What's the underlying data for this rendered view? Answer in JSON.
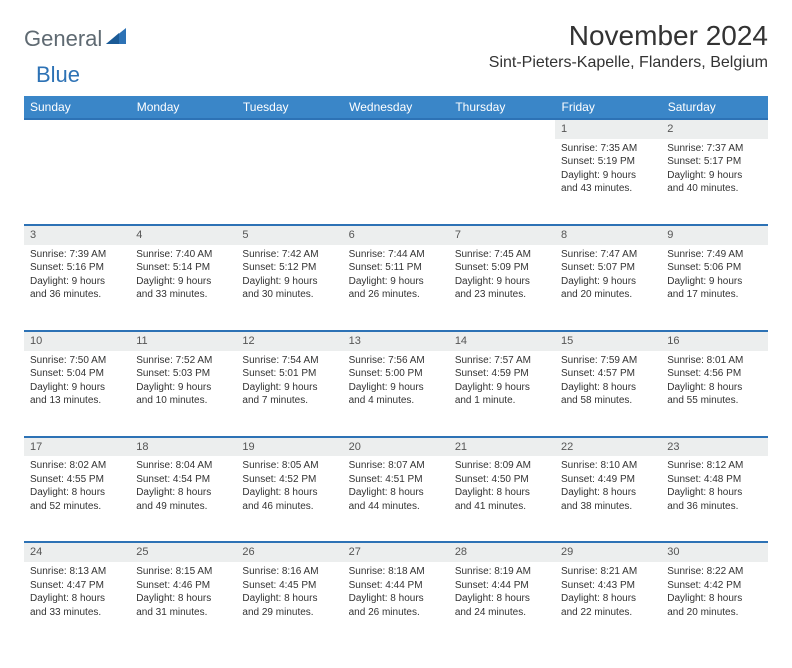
{
  "logo": {
    "text1": "General",
    "text2": "Blue"
  },
  "title": "November 2024",
  "location": "Sint-Pieters-Kapelle, Flanders, Belgium",
  "colors": {
    "header_bg": "#3a86c8",
    "accent_line": "#2d72b5",
    "daynum_bg": "#eceeee",
    "text": "#333333",
    "logo_gray": "#5f6a72",
    "logo_blue": "#2d72b5"
  },
  "dayHeaders": [
    "Sunday",
    "Monday",
    "Tuesday",
    "Wednesday",
    "Thursday",
    "Friday",
    "Saturday"
  ],
  "weeks": [
    [
      null,
      null,
      null,
      null,
      null,
      {
        "n": "1",
        "sr": "Sunrise: 7:35 AM",
        "ss": "Sunset: 5:19 PM",
        "dl1": "Daylight: 9 hours",
        "dl2": "and 43 minutes."
      },
      {
        "n": "2",
        "sr": "Sunrise: 7:37 AM",
        "ss": "Sunset: 5:17 PM",
        "dl1": "Daylight: 9 hours",
        "dl2": "and 40 minutes."
      }
    ],
    [
      {
        "n": "3",
        "sr": "Sunrise: 7:39 AM",
        "ss": "Sunset: 5:16 PM",
        "dl1": "Daylight: 9 hours",
        "dl2": "and 36 minutes."
      },
      {
        "n": "4",
        "sr": "Sunrise: 7:40 AM",
        "ss": "Sunset: 5:14 PM",
        "dl1": "Daylight: 9 hours",
        "dl2": "and 33 minutes."
      },
      {
        "n": "5",
        "sr": "Sunrise: 7:42 AM",
        "ss": "Sunset: 5:12 PM",
        "dl1": "Daylight: 9 hours",
        "dl2": "and 30 minutes."
      },
      {
        "n": "6",
        "sr": "Sunrise: 7:44 AM",
        "ss": "Sunset: 5:11 PM",
        "dl1": "Daylight: 9 hours",
        "dl2": "and 26 minutes."
      },
      {
        "n": "7",
        "sr": "Sunrise: 7:45 AM",
        "ss": "Sunset: 5:09 PM",
        "dl1": "Daylight: 9 hours",
        "dl2": "and 23 minutes."
      },
      {
        "n": "8",
        "sr": "Sunrise: 7:47 AM",
        "ss": "Sunset: 5:07 PM",
        "dl1": "Daylight: 9 hours",
        "dl2": "and 20 minutes."
      },
      {
        "n": "9",
        "sr": "Sunrise: 7:49 AM",
        "ss": "Sunset: 5:06 PM",
        "dl1": "Daylight: 9 hours",
        "dl2": "and 17 minutes."
      }
    ],
    [
      {
        "n": "10",
        "sr": "Sunrise: 7:50 AM",
        "ss": "Sunset: 5:04 PM",
        "dl1": "Daylight: 9 hours",
        "dl2": "and 13 minutes."
      },
      {
        "n": "11",
        "sr": "Sunrise: 7:52 AM",
        "ss": "Sunset: 5:03 PM",
        "dl1": "Daylight: 9 hours",
        "dl2": "and 10 minutes."
      },
      {
        "n": "12",
        "sr": "Sunrise: 7:54 AM",
        "ss": "Sunset: 5:01 PM",
        "dl1": "Daylight: 9 hours",
        "dl2": "and 7 minutes."
      },
      {
        "n": "13",
        "sr": "Sunrise: 7:56 AM",
        "ss": "Sunset: 5:00 PM",
        "dl1": "Daylight: 9 hours",
        "dl2": "and 4 minutes."
      },
      {
        "n": "14",
        "sr": "Sunrise: 7:57 AM",
        "ss": "Sunset: 4:59 PM",
        "dl1": "Daylight: 9 hours",
        "dl2": "and 1 minute."
      },
      {
        "n": "15",
        "sr": "Sunrise: 7:59 AM",
        "ss": "Sunset: 4:57 PM",
        "dl1": "Daylight: 8 hours",
        "dl2": "and 58 minutes."
      },
      {
        "n": "16",
        "sr": "Sunrise: 8:01 AM",
        "ss": "Sunset: 4:56 PM",
        "dl1": "Daylight: 8 hours",
        "dl2": "and 55 minutes."
      }
    ],
    [
      {
        "n": "17",
        "sr": "Sunrise: 8:02 AM",
        "ss": "Sunset: 4:55 PM",
        "dl1": "Daylight: 8 hours",
        "dl2": "and 52 minutes."
      },
      {
        "n": "18",
        "sr": "Sunrise: 8:04 AM",
        "ss": "Sunset: 4:54 PM",
        "dl1": "Daylight: 8 hours",
        "dl2": "and 49 minutes."
      },
      {
        "n": "19",
        "sr": "Sunrise: 8:05 AM",
        "ss": "Sunset: 4:52 PM",
        "dl1": "Daylight: 8 hours",
        "dl2": "and 46 minutes."
      },
      {
        "n": "20",
        "sr": "Sunrise: 8:07 AM",
        "ss": "Sunset: 4:51 PM",
        "dl1": "Daylight: 8 hours",
        "dl2": "and 44 minutes."
      },
      {
        "n": "21",
        "sr": "Sunrise: 8:09 AM",
        "ss": "Sunset: 4:50 PM",
        "dl1": "Daylight: 8 hours",
        "dl2": "and 41 minutes."
      },
      {
        "n": "22",
        "sr": "Sunrise: 8:10 AM",
        "ss": "Sunset: 4:49 PM",
        "dl1": "Daylight: 8 hours",
        "dl2": "and 38 minutes."
      },
      {
        "n": "23",
        "sr": "Sunrise: 8:12 AM",
        "ss": "Sunset: 4:48 PM",
        "dl1": "Daylight: 8 hours",
        "dl2": "and 36 minutes."
      }
    ],
    [
      {
        "n": "24",
        "sr": "Sunrise: 8:13 AM",
        "ss": "Sunset: 4:47 PM",
        "dl1": "Daylight: 8 hours",
        "dl2": "and 33 minutes."
      },
      {
        "n": "25",
        "sr": "Sunrise: 8:15 AM",
        "ss": "Sunset: 4:46 PM",
        "dl1": "Daylight: 8 hours",
        "dl2": "and 31 minutes."
      },
      {
        "n": "26",
        "sr": "Sunrise: 8:16 AM",
        "ss": "Sunset: 4:45 PM",
        "dl1": "Daylight: 8 hours",
        "dl2": "and 29 minutes."
      },
      {
        "n": "27",
        "sr": "Sunrise: 8:18 AM",
        "ss": "Sunset: 4:44 PM",
        "dl1": "Daylight: 8 hours",
        "dl2": "and 26 minutes."
      },
      {
        "n": "28",
        "sr": "Sunrise: 8:19 AM",
        "ss": "Sunset: 4:44 PM",
        "dl1": "Daylight: 8 hours",
        "dl2": "and 24 minutes."
      },
      {
        "n": "29",
        "sr": "Sunrise: 8:21 AM",
        "ss": "Sunset: 4:43 PM",
        "dl1": "Daylight: 8 hours",
        "dl2": "and 22 minutes."
      },
      {
        "n": "30",
        "sr": "Sunrise: 8:22 AM",
        "ss": "Sunset: 4:42 PM",
        "dl1": "Daylight: 8 hours",
        "dl2": "and 20 minutes."
      }
    ]
  ]
}
